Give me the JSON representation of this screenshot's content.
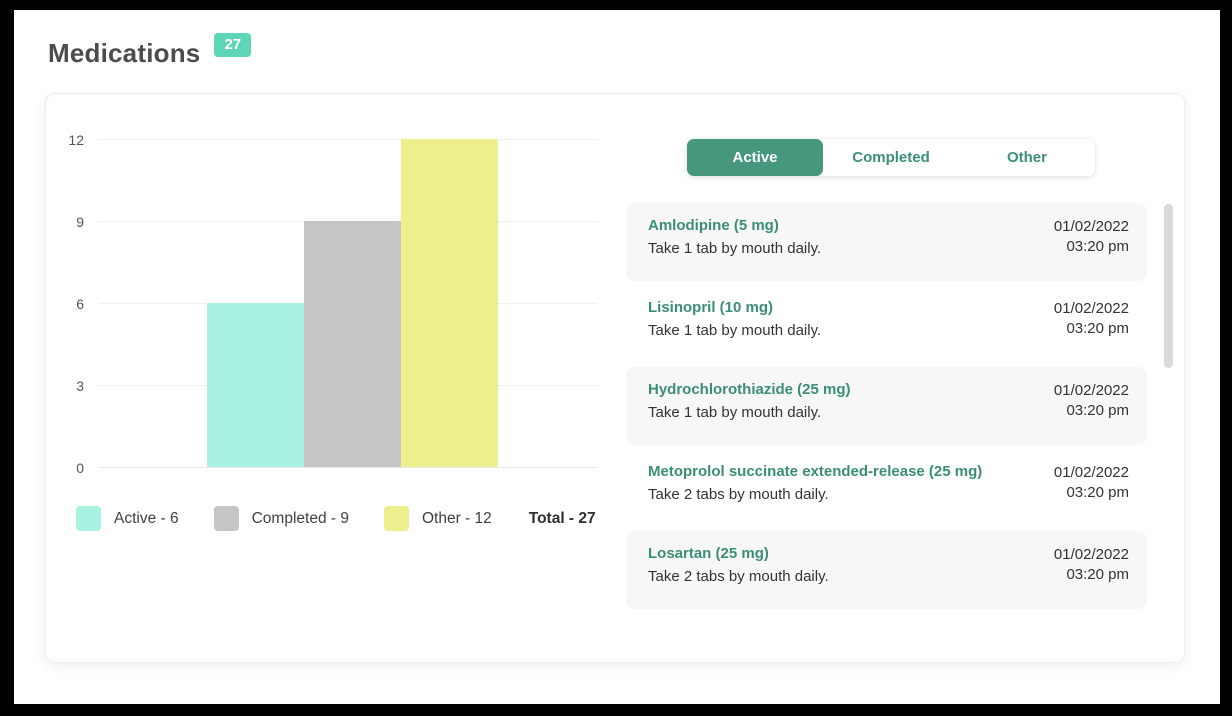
{
  "header": {
    "title": "Medications",
    "badge": "27"
  },
  "chart_data": {
    "type": "bar",
    "categories": [
      "Active",
      "Completed",
      "Other"
    ],
    "values": [
      6,
      9,
      12
    ],
    "colors": [
      "#a9f2e2",
      "#c6c6c6",
      "#ecef8c"
    ],
    "y_ticks": [
      0,
      3,
      6,
      9,
      12
    ],
    "ylim": [
      0,
      12
    ],
    "grid": true,
    "legend_position": "bottom",
    "legend": [
      {
        "label": "Active - 6",
        "color": "#a9f2e2"
      },
      {
        "label": "Completed - 9",
        "color": "#c6c6c6"
      },
      {
        "label": "Other - 12",
        "color": "#ecef8c"
      }
    ],
    "total_label": "Total - 27",
    "title": "",
    "xlabel": "",
    "ylabel": ""
  },
  "tabs": [
    {
      "label": "Active",
      "active": true
    },
    {
      "label": "Completed",
      "active": false
    },
    {
      "label": "Other",
      "active": false
    }
  ],
  "medications": [
    {
      "name": "Amlodipine (5 mg)",
      "instructions": "Take 1 tab by mouth daily.",
      "date": "01/02/2022",
      "time": "03:20 pm"
    },
    {
      "name": "Lisinopril (10 mg)",
      "instructions": "Take 1 tab by mouth daily.",
      "date": "01/02/2022",
      "time": "03:20 pm"
    },
    {
      "name": "Hydrochlorothiazide (25 mg)",
      "instructions": "Take 1 tab by mouth daily.",
      "date": "01/02/2022",
      "time": "03:20 pm"
    },
    {
      "name": "Metoprolol succinate extended-release (25 mg)",
      "instructions": "Take 2 tabs by mouth daily.",
      "date": "01/02/2022",
      "time": "03:20 pm"
    },
    {
      "name": "Losartan (25 mg)",
      "instructions": "Take 2 tabs by mouth daily.",
      "date": "01/02/2022",
      "time": "03:20 pm"
    }
  ],
  "colors": {
    "accent_green": "#47977e",
    "link_green": "#3a8e74",
    "badge_mint": "#5fd5b8",
    "item_row_bg": "#f7f7f7",
    "scrollbar_thumb": "#d9d9d9"
  }
}
